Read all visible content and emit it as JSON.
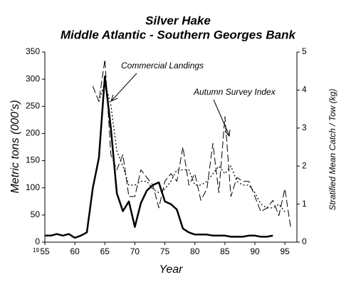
{
  "chart_data": {
    "type": "line",
    "title": "Silver Hake",
    "subtitle": "Middle Atlantic - Southern Georges Bank",
    "x_label": "Year",
    "y_label": "Metric tons (000's)",
    "y2_label": "Stratified Mean Catch / Tow (kg)",
    "x_prefix": "19",
    "annotations": [
      "Commercial Landings",
      "Autumn Survey Index"
    ],
    "x": [
      1955,
      1956,
      1957,
      1958,
      1959,
      1960,
      1961,
      1962,
      1963,
      1964,
      1965,
      1966,
      1967,
      1968,
      1969,
      1970,
      1971,
      1972,
      1973,
      1974,
      1975,
      1976,
      1977,
      1978,
      1979,
      1980,
      1981,
      1982,
      1983,
      1984,
      1985,
      1986,
      1987,
      1988,
      1989,
      1990,
      1991,
      1992,
      1993,
      1994,
      1995,
      1996
    ],
    "xlim": [
      1955,
      1997
    ],
    "xticks": [
      {
        "value": 1955,
        "label": "55"
      },
      {
        "value": 1960,
        "label": "60"
      },
      {
        "value": 1965,
        "label": "65"
      },
      {
        "value": 1970,
        "label": "70"
      },
      {
        "value": 1975,
        "label": "75"
      },
      {
        "value": 1980,
        "label": "80"
      },
      {
        "value": 1985,
        "label": "85"
      },
      {
        "value": 1990,
        "label": "90"
      },
      {
        "value": 1995,
        "label": "95"
      }
    ],
    "ylim": [
      0,
      350
    ],
    "yticks": [
      0,
      50,
      100,
      150,
      200,
      250,
      300,
      350
    ],
    "y2lim": [
      0,
      5
    ],
    "y2ticks": [
      0,
      1,
      2,
      3,
      4,
      5
    ],
    "series": [
      {
        "name": "Commercial Landings",
        "color": "#000000",
        "style": "solid",
        "values": [
          12,
          12,
          15,
          12,
          15,
          8,
          12,
          18,
          100,
          155,
          305,
          210,
          90,
          57,
          75,
          28,
          72,
          95,
          105,
          110,
          75,
          70,
          60,
          25,
          18,
          14,
          14,
          14,
          12,
          12,
          12,
          10,
          10,
          10,
          12,
          12,
          10,
          10,
          12,
          null,
          null,
          null
        ]
      },
      {
        "name": "Autumn Survey Index",
        "color": "#000000",
        "style": "dashed",
        "axis": "y2",
        "values": [
          null,
          null,
          null,
          null,
          null,
          null,
          null,
          null,
          4.1,
          3.7,
          4.8,
          2.3,
          1.9,
          2.3,
          1.2,
          1.2,
          1.9,
          1.7,
          1.5,
          0.9,
          1.6,
          1.8,
          1.6,
          2.5,
          1.5,
          1.8,
          1.1,
          1.4,
          2.6,
          1.3,
          3.3,
          1.2,
          1.7,
          1.6,
          1.6,
          1.2,
          0.8,
          0.9,
          1.1,
          0.7,
          1.4,
          0.35
        ]
      },
      {
        "color": "#000000",
        "style": "dotted",
        "axis": "y2",
        "values": [
          null,
          null,
          null,
          null,
          null,
          null,
          null,
          null,
          null,
          3.7,
          4.2,
          3.6,
          2.4,
          2.0,
          1.5,
          1.5,
          1.6,
          1.6,
          1.4,
          1.3,
          1.4,
          1.6,
          1.9,
          1.9,
          1.9,
          1.5,
          1.5,
          1.6,
          1.8,
          2.0,
          1.8,
          2.0,
          1.6,
          1.5,
          1.5,
          1.3,
          1.0,
          0.9,
          0.9,
          1.0,
          0.8,
          null
        ]
      }
    ]
  }
}
